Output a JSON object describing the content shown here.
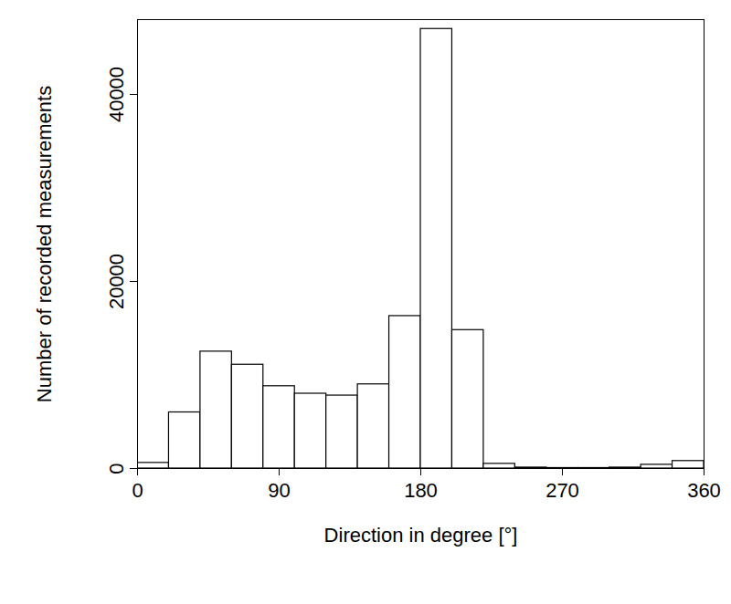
{
  "chart_data": {
    "type": "histogram",
    "xlabel": "Direction in degree [°]",
    "ylabel": "Number of recorded measurements",
    "bins": [
      0,
      20,
      40,
      60,
      80,
      100,
      120,
      140,
      160,
      180,
      200,
      220,
      240,
      260,
      280,
      300,
      320,
      340,
      360
    ],
    "values": [
      600,
      6000,
      12500,
      11100,
      8800,
      8000,
      7800,
      9000,
      16300,
      47000,
      14800,
      500,
      100,
      50,
      50,
      100,
      400,
      800
    ],
    "color": "#ffffff",
    "xlim": [
      0,
      360
    ],
    "xticks": [
      0,
      90,
      180,
      270,
      360
    ],
    "ylim": [
      0,
      48000
    ],
    "yticks": [
      0,
      20000,
      40000
    ],
    "grid": false
  }
}
